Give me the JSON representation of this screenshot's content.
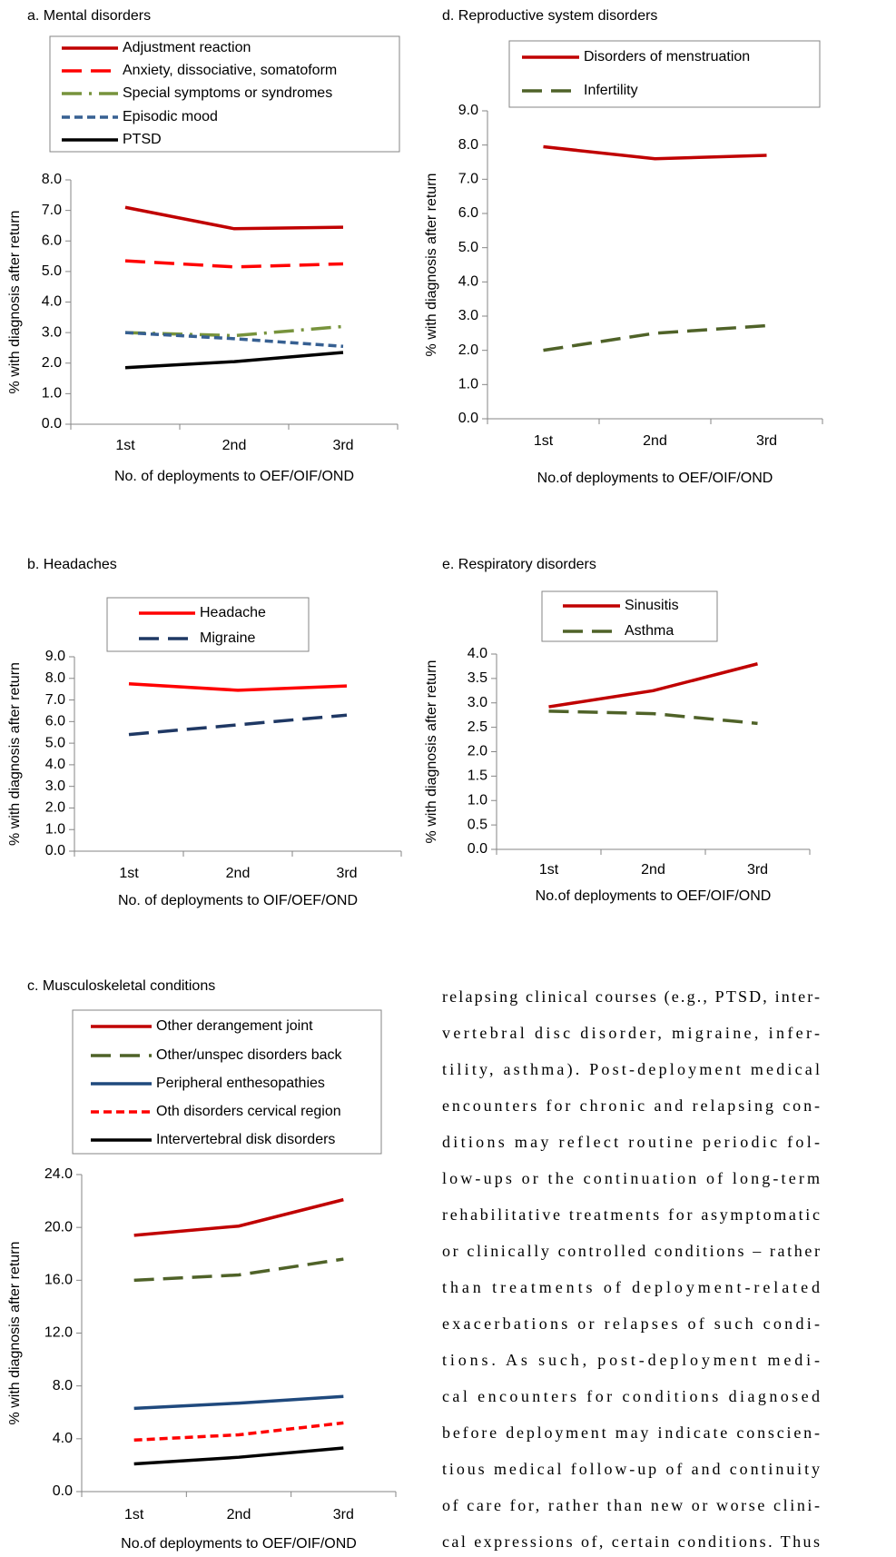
{
  "chart_data": [
    {
      "type": "line",
      "title": "a. Mental disorders",
      "x_label": "No. of deployments to OEF/OIF/OND",
      "y_label": "% with diagnosis after return",
      "categories": [
        "1st",
        "2nd",
        "3rd"
      ],
      "ylim": [
        0,
        8
      ],
      "yticks": [
        {
          "value": 0,
          "label": "0.0"
        },
        {
          "value": 1,
          "label": "1.0"
        },
        {
          "value": 2,
          "label": "2.0"
        },
        {
          "value": 3,
          "label": "3.0"
        },
        {
          "value": 4,
          "label": "4.0"
        },
        {
          "value": 5,
          "label": "5.0"
        },
        {
          "value": 6,
          "label": "6.0"
        },
        {
          "value": 7,
          "label": "7.0"
        },
        {
          "value": 8,
          "label": "8.0"
        }
      ],
      "series": [
        {
          "name": "Adjustment reaction",
          "color": "#c00000",
          "style": "solid",
          "values": [
            7.1,
            6.4,
            6.45
          ]
        },
        {
          "name": "Anxiety, dissociative, somatoform",
          "color": "#ff0000",
          "style": "dash",
          "values": [
            5.35,
            5.15,
            5.25
          ]
        },
        {
          "name": "Special symptoms or syndromes",
          "color": "#77933c",
          "style": "dash-dot",
          "values": [
            3.0,
            2.9,
            3.2
          ]
        },
        {
          "name": "Episodic mood",
          "color": "#376092",
          "style": "dot",
          "values": [
            3.0,
            2.8,
            2.55
          ]
        },
        {
          "name": "PTSD",
          "color": "#000000",
          "style": "solid",
          "values": [
            1.85,
            2.05,
            2.35
          ]
        }
      ]
    },
    {
      "type": "line",
      "title": "d. Reproductive system disorders",
      "x_label": "No.of deployments to OEF/OIF/OND",
      "y_label": "% with diagnosis after return",
      "categories": [
        "1st",
        "2nd",
        "3rd"
      ],
      "ylim": [
        0,
        9
      ],
      "yticks": [
        {
          "value": 0,
          "label": "0.0"
        },
        {
          "value": 1,
          "label": "1.0"
        },
        {
          "value": 2,
          "label": "2.0"
        },
        {
          "value": 3,
          "label": "3.0"
        },
        {
          "value": 4,
          "label": "4.0"
        },
        {
          "value": 5,
          "label": "5.0"
        },
        {
          "value": 6,
          "label": "6.0"
        },
        {
          "value": 7,
          "label": "7.0"
        },
        {
          "value": 8,
          "label": "8.0"
        },
        {
          "value": 9,
          "label": "9.0"
        }
      ],
      "series": [
        {
          "name": "Disorders of menstruation",
          "color": "#c00000",
          "style": "solid",
          "values": [
            7.95,
            7.6,
            7.7
          ]
        },
        {
          "name": "Infertility",
          "color": "#4f6228",
          "style": "dash",
          "values": [
            2.0,
            2.5,
            2.72
          ]
        }
      ]
    },
    {
      "type": "line",
      "title": "b. Headaches",
      "x_label": "No. of deployments to OIF/OEF/OND",
      "y_label": "% with diagnosis after return",
      "categories": [
        "1st",
        "2nd",
        "3rd"
      ],
      "ylim": [
        0,
        9
      ],
      "yticks": [
        {
          "value": 0,
          "label": "0.0"
        },
        {
          "value": 1,
          "label": "1.0"
        },
        {
          "value": 2,
          "label": "2.0"
        },
        {
          "value": 3,
          "label": "3.0"
        },
        {
          "value": 4,
          "label": "4.0"
        },
        {
          "value": 5,
          "label": "5.0"
        },
        {
          "value": 6,
          "label": "6.0"
        },
        {
          "value": 7,
          "label": "7.0"
        },
        {
          "value": 8,
          "label": "8.0"
        },
        {
          "value": 9,
          "label": "9.0"
        }
      ],
      "series": [
        {
          "name": "Headache",
          "color": "#ff0000",
          "style": "solid",
          "values": [
            7.75,
            7.45,
            7.65
          ]
        },
        {
          "name": "Migraine",
          "color": "#1f3864",
          "style": "dash",
          "values": [
            5.4,
            5.85,
            6.3
          ]
        }
      ]
    },
    {
      "type": "line",
      "title": "e. Respiratory disorders",
      "x_label": "No.of deployments to OEF/OIF/OND",
      "y_label": "% with diagnosis after return",
      "categories": [
        "1st",
        "2nd",
        "3rd"
      ],
      "ylim": [
        0,
        4
      ],
      "yticks": [
        {
          "value": 0,
          "label": "0.0"
        },
        {
          "value": 0.5,
          "label": "0.5"
        },
        {
          "value": 1,
          "label": "1.0"
        },
        {
          "value": 1.5,
          "label": "1.5"
        },
        {
          "value": 2,
          "label": "2.0"
        },
        {
          "value": 2.5,
          "label": "2.5"
        },
        {
          "value": 3,
          "label": "3.0"
        },
        {
          "value": 3.5,
          "label": "3.5"
        },
        {
          "value": 4,
          "label": "4.0"
        }
      ],
      "series": [
        {
          "name": "Sinusitis",
          "color": "#c00000",
          "style": "solid",
          "values": [
            2.92,
            3.25,
            3.8
          ]
        },
        {
          "name": "Asthma",
          "color": "#4f6228",
          "style": "dash",
          "values": [
            2.83,
            2.78,
            2.58
          ]
        }
      ]
    },
    {
      "type": "line",
      "title": "c. Musculoskeletal conditions",
      "x_label": "No.of deployments to OEF/OIF/OND",
      "y_label": "% with diagnosis after return",
      "categories": [
        "1st",
        "2nd",
        "3rd"
      ],
      "ylim": [
        0,
        24
      ],
      "yticks": [
        {
          "value": 0,
          "label": "0.0"
        },
        {
          "value": 4,
          "label": "4.0"
        },
        {
          "value": 8,
          "label": "8.0"
        },
        {
          "value": 12,
          "label": "12.0"
        },
        {
          "value": 16,
          "label": "16.0"
        },
        {
          "value": 20,
          "label": "20.0"
        },
        {
          "value": 24,
          "label": "24.0"
        }
      ],
      "series": [
        {
          "name": "Other derangement joint",
          "color": "#c00000",
          "style": "solid",
          "values": [
            19.4,
            20.1,
            22.1
          ]
        },
        {
          "name": "Other/unspec disorders back",
          "color": "#4f6228",
          "style": "dash",
          "values": [
            16.0,
            16.4,
            17.6
          ]
        },
        {
          "name": "Peripheral enthesopathies",
          "color": "#1f497d",
          "style": "solid",
          "values": [
            6.3,
            6.7,
            7.2
          ]
        },
        {
          "name": "Oth disorders cervical region",
          "color": "#ff0000",
          "style": "dot",
          "values": [
            3.9,
            4.3,
            5.2
          ]
        },
        {
          "name": "Intervertebral disk disorders",
          "color": "#000000",
          "style": "solid",
          "values": [
            2.1,
            2.6,
            3.3
          ]
        }
      ]
    }
  ],
  "text": {
    "lines": [
      "relapsing clinical courses (e.g., PTSD, inter-",
      "vertebral disc disorder, migraine, infer-",
      "tility, asthma). Post-deployment medical",
      "encounters for chronic and relapsing con-",
      "ditions may reflect routine periodic fol-",
      "low-ups or the continuation of long-term",
      "rehabilitative treatments for asymptomatic",
      "or clinically controlled conditions – rather",
      "than treatments of deployment-related",
      "exacerbations or relapses of such condi-",
      "tions. As such, post-deployment medi-",
      "cal encounters for conditions diagnosed",
      "before deployment may indicate conscien-",
      "tious medical follow-up of and continuity",
      "of care for, rather than new or worse clini-",
      "cal expressions of, certain conditions. Thus"
    ]
  }
}
